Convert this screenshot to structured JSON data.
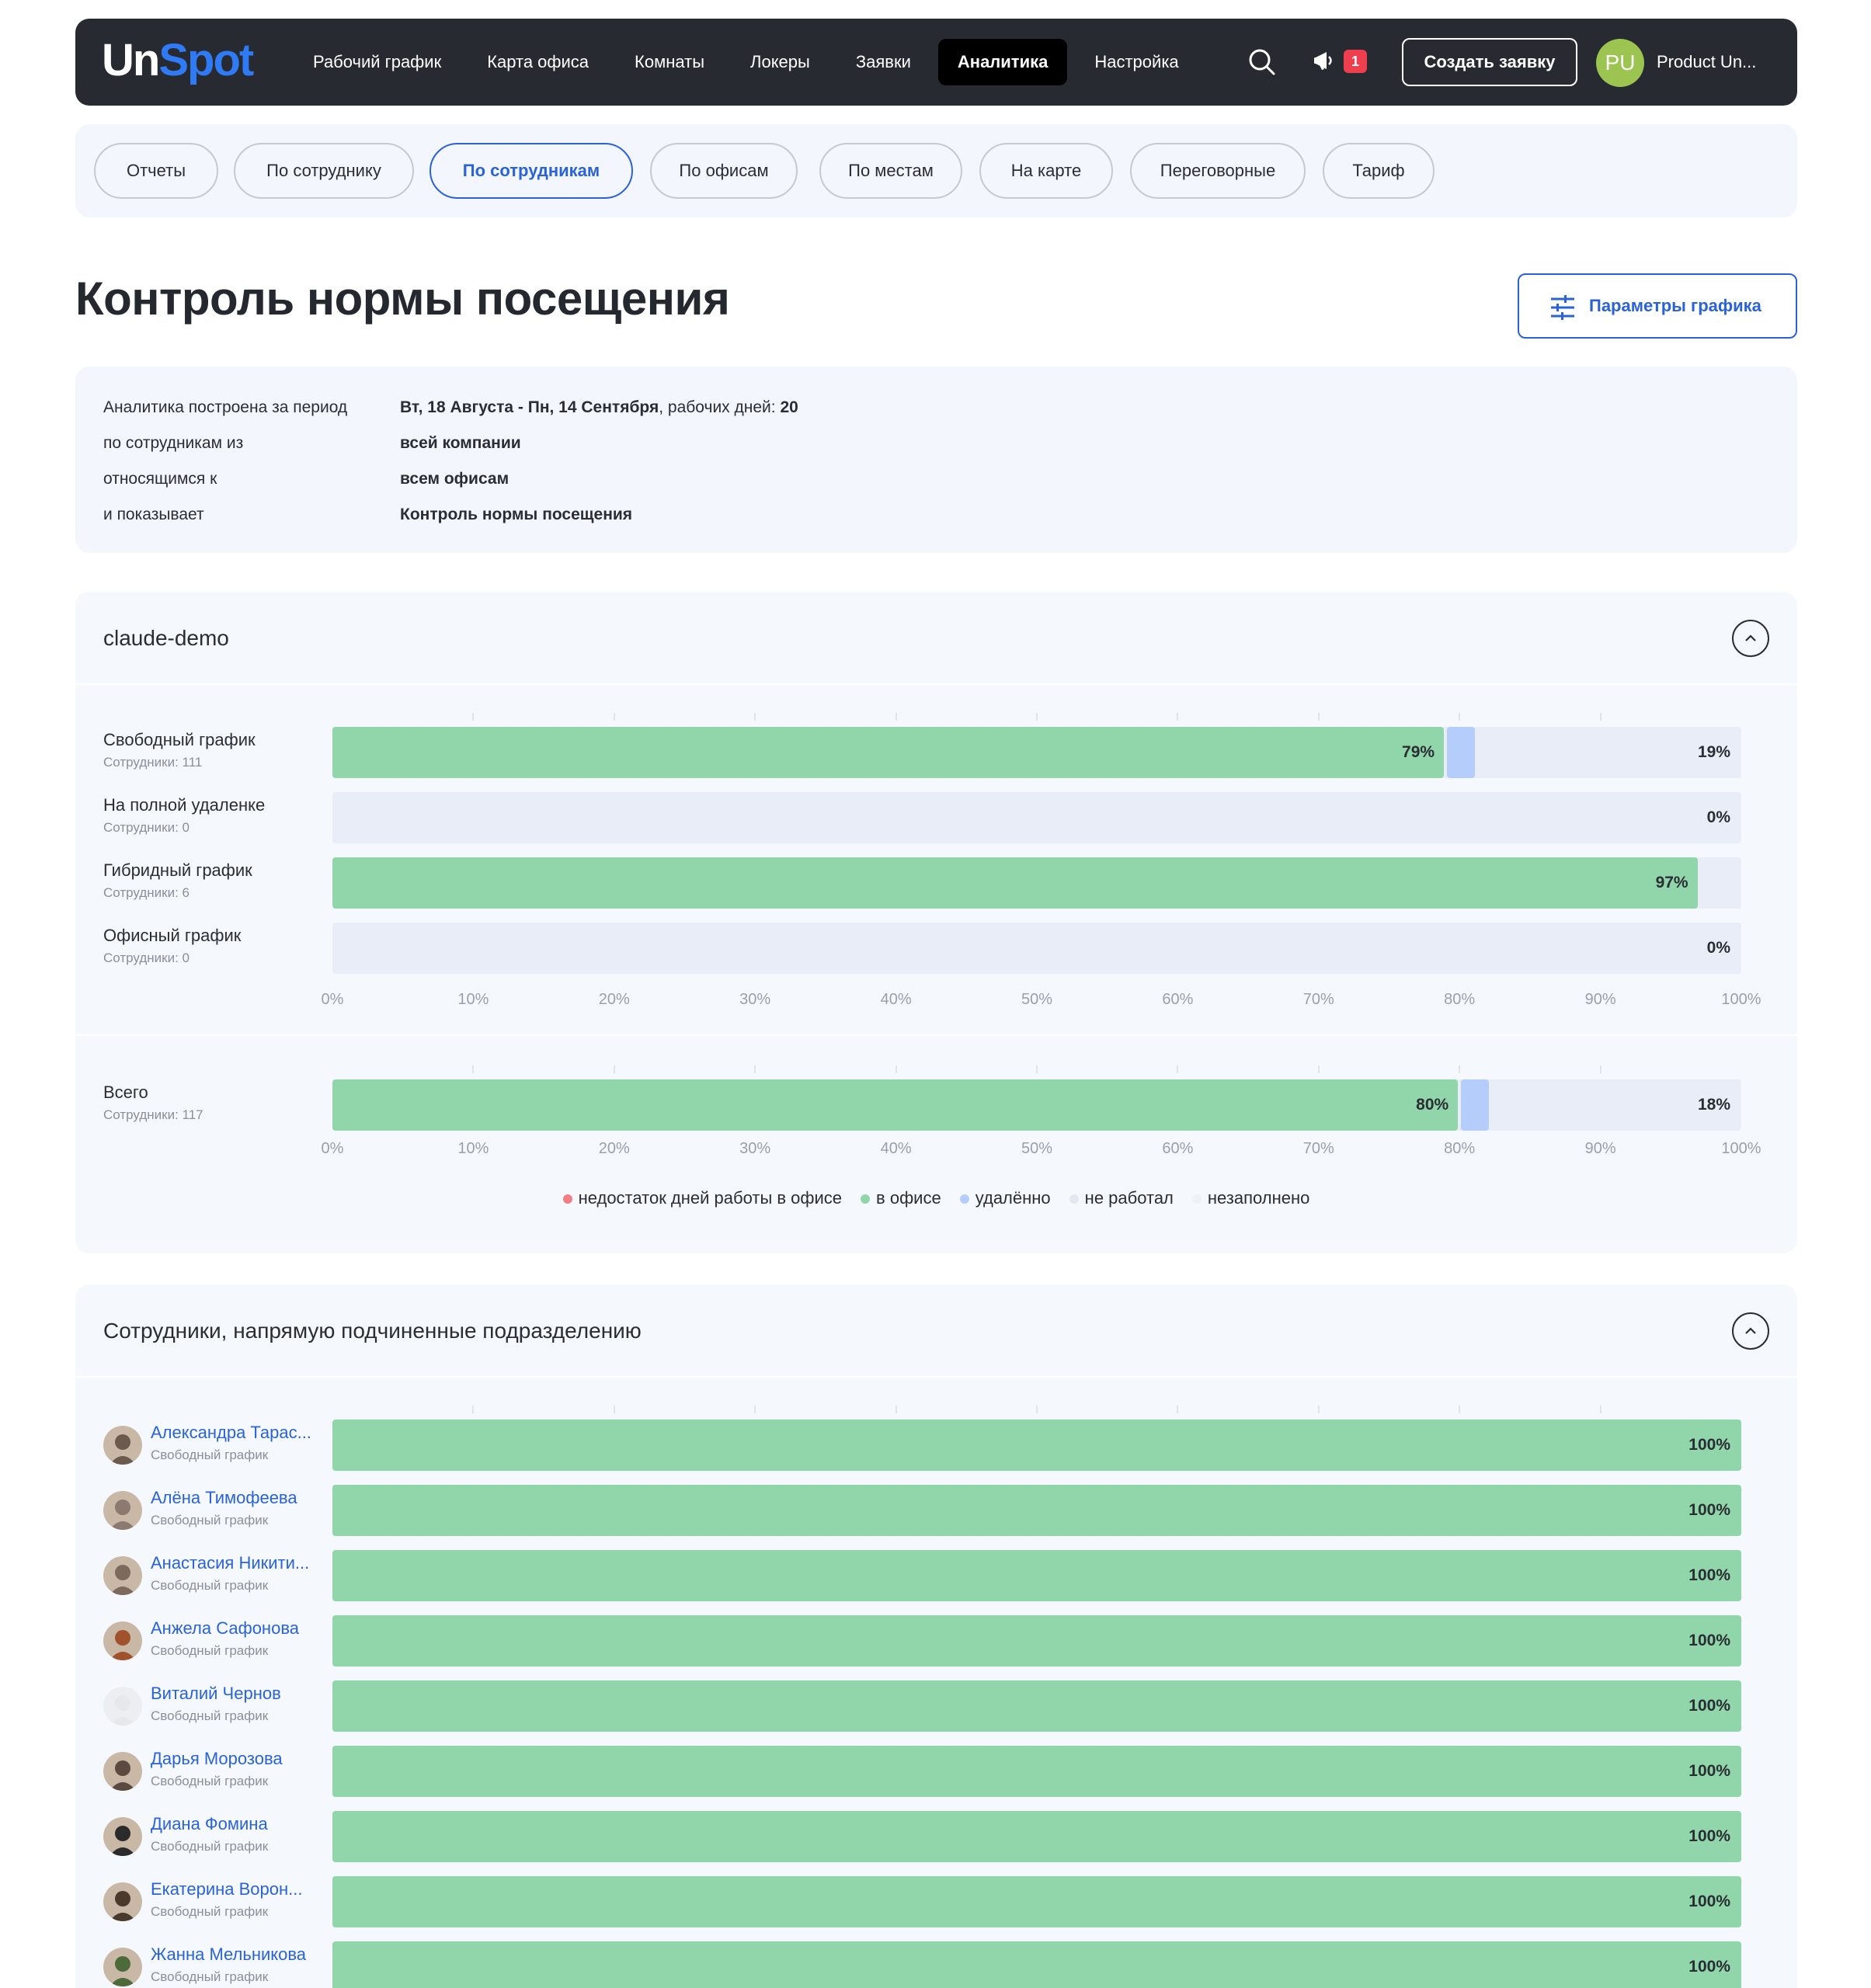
{
  "navbar": {
    "logo_un": "Un",
    "logo_spot": "Spot",
    "items": [
      {
        "label": "Рабочий график",
        "active": false
      },
      {
        "label": "Карта офиса",
        "active": false
      },
      {
        "label": "Комнаты",
        "active": false
      },
      {
        "label": "Локеры",
        "active": false
      },
      {
        "label": "Заявки",
        "active": false
      },
      {
        "label": "Аналитика",
        "active": true
      },
      {
        "label": "Настройка",
        "active": false
      }
    ],
    "notification_count": "1",
    "create_button": "Создать заявку",
    "avatar_initials": "PU",
    "user_name": "Product Un..."
  },
  "tabs": [
    {
      "label": "Отчеты",
      "active": false
    },
    {
      "label": "По сотруднику",
      "active": false
    },
    {
      "label": "По сотрудникам",
      "active": true
    },
    {
      "label": "По офисам",
      "active": false
    },
    {
      "label": "По местам",
      "active": false
    },
    {
      "label": "На карте",
      "active": false
    },
    {
      "label": "Переговорные",
      "active": false
    },
    {
      "label": "Тариф",
      "active": false
    }
  ],
  "page_title": "Контроль нормы посещения",
  "params_button": "Параметры графика",
  "info": {
    "rows": [
      {
        "label": "Аналитика построена за период",
        "bold": "Вт, 18 Августа - Пн, 14 Сентября",
        "rest": ", рабочих дней: ",
        "bold2": "20"
      },
      {
        "label": "по сотрудникам из",
        "bold": "всей компании",
        "rest": "",
        "bold2": ""
      },
      {
        "label": "относящимся к",
        "bold": "всем офисам",
        "rest": "",
        "bold2": ""
      },
      {
        "label": "и показывает",
        "bold": "Контроль нормы посещения",
        "rest": "",
        "bold2": ""
      }
    ]
  },
  "company_panel": {
    "title": "claude-demo",
    "total_label": "Всего",
    "total_sub": "Сотрудники: 117"
  },
  "employees_panel": {
    "title": "Сотрудники, напрямую подчиненные подразделению"
  },
  "colors": {
    "office": "#90d6aa",
    "remote": "#b4cdfa",
    "not_worked": "#e3e7ef",
    "unfilled": "#eef1f6",
    "shortage": "#f07e84",
    "accent": "#2a63d8"
  },
  "chart_data": [
    {
      "type": "bar",
      "orientation": "horizontal",
      "stacked": true,
      "categories": [
        "Свободный график",
        "На полной удаленке",
        "Гибридный график",
        "Офисный график"
      ],
      "subtitles": [
        "Сотрудники: 111",
        "Сотрудники: 0",
        "Сотрудники: 6",
        "Сотрудники: 0"
      ],
      "series": [
        {
          "name": "в офисе",
          "values": [
            79,
            0,
            97,
            0
          ]
        },
        {
          "name": "удалённо",
          "values": [
            2,
            0,
            0,
            0
          ]
        },
        {
          "name": "не работал",
          "values": [
            19,
            0,
            3,
            0
          ]
        }
      ],
      "labels": [
        [
          "79%",
          "19%"
        ],
        [
          "0%"
        ],
        [
          "97%"
        ],
        [
          "0%"
        ]
      ],
      "xlim": [
        0,
        100
      ],
      "xticks": [
        "0%",
        "10%",
        "20%",
        "30%",
        "40%",
        "50%",
        "60%",
        "70%",
        "80%",
        "90%",
        "100%"
      ]
    },
    {
      "type": "bar",
      "orientation": "horizontal",
      "stacked": true,
      "categories": [
        "Всего"
      ],
      "series": [
        {
          "name": "в офисе",
          "values": [
            80
          ]
        },
        {
          "name": "удалённо",
          "values": [
            2
          ]
        },
        {
          "name": "не работал",
          "values": [
            18
          ]
        }
      ],
      "labels": [
        [
          "80%",
          "18%"
        ]
      ],
      "xlim": [
        0,
        100
      ],
      "xticks": [
        "0%",
        "10%",
        "20%",
        "30%",
        "40%",
        "50%",
        "60%",
        "70%",
        "80%",
        "90%",
        "100%"
      ]
    },
    {
      "type": "bar",
      "orientation": "horizontal",
      "categories": [
        "Александра Тарас...",
        "Алёна Тимофеева",
        "Анастасия Никити...",
        "Анжела Сафонова",
        "Виталий Чернов",
        "Дарья Морозова",
        "Диана Фомина",
        "Екатерина Ворон...",
        "Жанна Мельникова"
      ],
      "subtitle": "Свободный график",
      "series": [
        {
          "name": "в офисе",
          "values": [
            100,
            100,
            100,
            100,
            100,
            100,
            100,
            100,
            100
          ]
        }
      ],
      "labels": [
        "100%",
        "100%",
        "100%",
        "100%",
        "100%",
        "100%",
        "100%",
        "100%",
        "100%"
      ],
      "xlim": [
        0,
        100
      ]
    }
  ],
  "legend": [
    {
      "label": "недостаток дней работы в офисе",
      "color": "#f07e84"
    },
    {
      "label": "в офисе",
      "color": "#90d6aa"
    },
    {
      "label": "удалённо",
      "color": "#b4cdfa"
    },
    {
      "label": "не работал",
      "color": "#e3e7ef"
    },
    {
      "label": "незаполнено",
      "color": "#eef1f6"
    }
  ],
  "avatar_colors": [
    "#6b5a4e",
    "#8a7a70",
    "#7d6a5d",
    "#a0522d",
    "#e6e8ec",
    "#5b4a40",
    "#2b2b2b",
    "#4a3a2e",
    "#4d6b3a"
  ]
}
